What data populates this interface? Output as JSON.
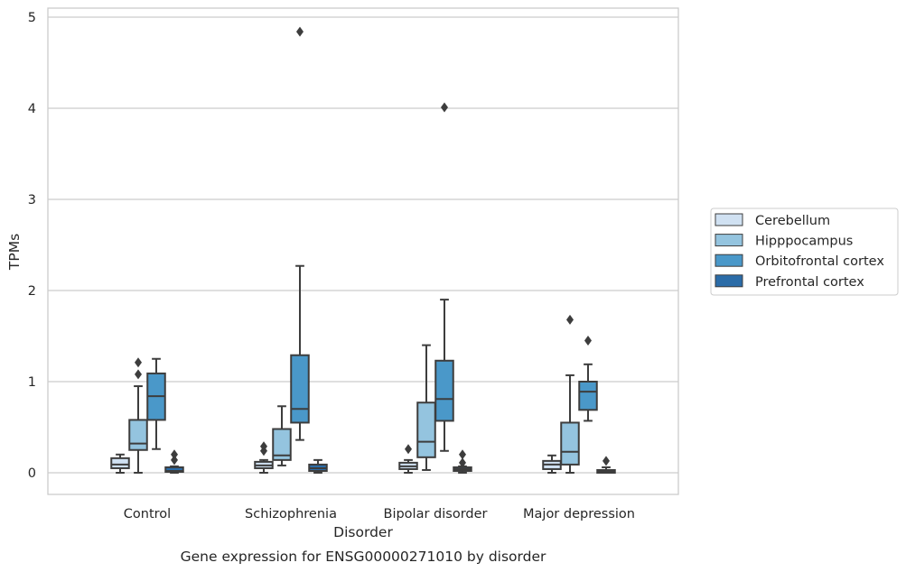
{
  "caption": "Gene expression for ENSG00000271010 by disorder",
  "chart_data": {
    "type": "box",
    "title": "",
    "xlabel": "Disorder",
    "ylabel": "TPMs",
    "ylim": [
      -0.23,
      5.1
    ],
    "yticks": [
      0,
      1,
      2,
      3,
      4,
      5
    ],
    "grid": "horizontal",
    "legend_position": "right, outside",
    "categories": [
      "Control",
      "Schizophrenia",
      "Bipolar disorder",
      "Major depression"
    ],
    "series": [
      {
        "name": "Cerebellum",
        "color": "#d0e1f2",
        "boxes": [
          {
            "whisker_low": 0.0,
            "q1": 0.05,
            "median": 0.09,
            "q3": 0.16,
            "whisker_high": 0.2,
            "outliers": []
          },
          {
            "whisker_low": 0.0,
            "q1": 0.05,
            "median": 0.08,
            "q3": 0.12,
            "whisker_high": 0.14,
            "outliers": [
              0.24,
              0.29
            ]
          },
          {
            "whisker_low": 0.0,
            "q1": 0.04,
            "median": 0.07,
            "q3": 0.11,
            "whisker_high": 0.14,
            "outliers": [
              0.26
            ]
          },
          {
            "whisker_low": 0.0,
            "q1": 0.04,
            "median": 0.09,
            "q3": 0.13,
            "whisker_high": 0.19,
            "outliers": []
          }
        ]
      },
      {
        "name": "Hipppocampus",
        "color": "#94c4df",
        "boxes": [
          {
            "whisker_low": 0.0,
            "q1": 0.25,
            "median": 0.32,
            "q3": 0.58,
            "whisker_high": 0.95,
            "outliers": [
              1.08,
              1.21
            ]
          },
          {
            "whisker_low": 0.08,
            "q1": 0.14,
            "median": 0.19,
            "q3": 0.48,
            "whisker_high": 0.73,
            "outliers": []
          },
          {
            "whisker_low": 0.03,
            "q1": 0.17,
            "median": 0.34,
            "q3": 0.77,
            "whisker_high": 1.4,
            "outliers": []
          },
          {
            "whisker_low": 0.0,
            "q1": 0.09,
            "median": 0.23,
            "q3": 0.55,
            "whisker_high": 1.07,
            "outliers": [
              1.68
            ]
          }
        ]
      },
      {
        "name": "Orbitofrontal cortex",
        "color": "#4a98c9",
        "boxes": [
          {
            "whisker_low": 0.26,
            "q1": 0.58,
            "median": 0.84,
            "q3": 1.09,
            "whisker_high": 1.25,
            "outliers": []
          },
          {
            "whisker_low": 0.36,
            "q1": 0.55,
            "median": 0.7,
            "q3": 1.29,
            "whisker_high": 2.27,
            "outliers": [
              4.84
            ]
          },
          {
            "whisker_low": 0.24,
            "q1": 0.57,
            "median": 0.81,
            "q3": 1.23,
            "whisker_high": 1.9,
            "outliers": [
              4.01
            ]
          },
          {
            "whisker_low": 0.57,
            "q1": 0.69,
            "median": 0.89,
            "q3": 1.0,
            "whisker_high": 1.19,
            "outliers": [
              1.45
            ]
          }
        ]
      },
      {
        "name": "Prefrontal cortex",
        "color": "#2b6ca8",
        "boxes": [
          {
            "whisker_low": 0.0,
            "q1": 0.01,
            "median": 0.02,
            "q3": 0.06,
            "whisker_high": 0.07,
            "outliers": [
              0.14,
              0.2
            ]
          },
          {
            "whisker_low": 0.0,
            "q1": 0.02,
            "median": 0.05,
            "q3": 0.09,
            "whisker_high": 0.14,
            "outliers": []
          },
          {
            "whisker_low": 0.0,
            "q1": 0.02,
            "median": 0.04,
            "q3": 0.06,
            "whisker_high": 0.07,
            "outliers": [
              0.11,
              0.2
            ]
          },
          {
            "whisker_low": 0.0,
            "q1": 0.0,
            "median": 0.02,
            "q3": 0.03,
            "whisker_high": 0.06,
            "outliers": [
              0.13
            ]
          }
        ]
      }
    ]
  }
}
